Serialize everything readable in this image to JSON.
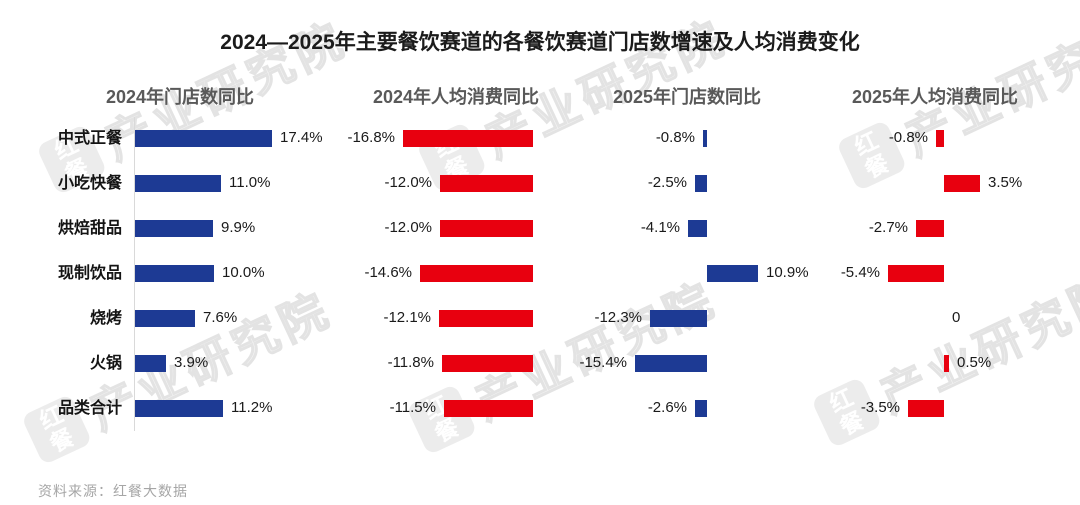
{
  "page": {
    "title": "2024—2025年主要餐饮赛道的各餐饮赛道门店数增速及人均消费变化",
    "source": "资料来源：红餐大数据",
    "watermark": {
      "logo": "红餐",
      "text": "产业研究院"
    }
  },
  "colors": {
    "store_bar_blue": "#1d3a94",
    "spend_bar_red": "#e8000f",
    "header_gray": "#595959",
    "axis_gray": "#d9d9d9"
  },
  "chart_data": {
    "type": "bar",
    "orientation": "horizontal",
    "title": "2024—2025年主要餐饮赛道的各餐饮赛道门店数增速及人均消费变化",
    "categories": [
      "中式正餐",
      "小吃快餐",
      "烘焙甜品",
      "现制饮品",
      "烧烤",
      "火锅",
      "品类合计"
    ],
    "unit": "%",
    "grid": false,
    "legend_position": "column-headers",
    "series": [
      {
        "name": "2024年门店数同比",
        "color": "#1d3a94",
        "values": [
          17.4,
          11.0,
          9.9,
          10.0,
          7.6,
          3.9,
          11.2
        ],
        "labels": [
          "17.4%",
          "11.0%",
          "9.9%",
          "10.0%",
          "7.6%",
          "3.9%",
          "11.2%"
        ]
      },
      {
        "name": "2024年人均消费同比",
        "color": "#e8000f",
        "values": [
          -16.8,
          -12.0,
          -12.0,
          -14.6,
          -12.1,
          -11.8,
          -11.5
        ],
        "labels": [
          "-16.8%",
          "-12.0%",
          "-12.0%",
          "-14.6%",
          "-12.1%",
          "-11.8%",
          "-11.5%"
        ]
      },
      {
        "name": "2025年门店数同比",
        "color": "#1d3a94",
        "values": [
          -0.8,
          -2.5,
          -4.1,
          10.9,
          -12.3,
          -15.4,
          -2.6
        ],
        "labels": [
          "-0.8%",
          "-2.5%",
          "-4.1%",
          "10.9%",
          "-12.3%",
          "-15.4%",
          "-2.6%"
        ]
      },
      {
        "name": "2025年人均消费同比",
        "color": "#e8000f",
        "values": [
          -0.8,
          3.5,
          -2.7,
          -5.4,
          0,
          0.5,
          -3.5
        ],
        "labels": [
          "-0.8%",
          "3.5%",
          "-2.7%",
          "-5.4%",
          "0",
          "0.5%",
          "-3.5%"
        ]
      }
    ]
  }
}
